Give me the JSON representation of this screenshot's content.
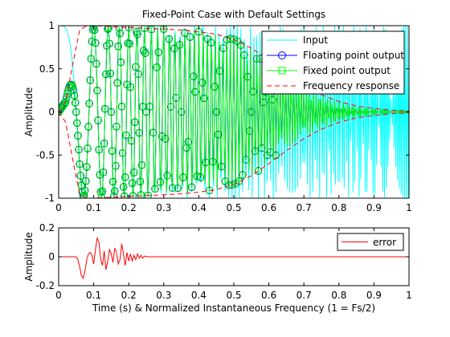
{
  "chart_data": [
    {
      "type": "line",
      "title": "Fixed-Point Case with Default Settings",
      "xlabel": "",
      "ylabel": "Amplitude",
      "xlim": [
        0,
        1
      ],
      "ylim": [
        -1,
        1
      ],
      "xticks": [
        0,
        0.1,
        0.2,
        0.3,
        0.4,
        0.5,
        0.6,
        0.7,
        0.8,
        0.9,
        1
      ],
      "xtick_labels": [
        "0",
        "0.1",
        "0.2",
        "0.3",
        "0.4",
        "0.5",
        "0.6",
        "0.7",
        "0.8",
        "0.9",
        "1"
      ],
      "yticks": [
        -1,
        -0.5,
        0,
        0.5,
        1
      ],
      "ytick_labels": [
        "-1",
        "-0.5",
        "0",
        "0.5",
        "1"
      ],
      "grid": false,
      "legend_position": "top-right",
      "series": [
        {
          "name": "Input",
          "color": "#00ffff",
          "marker": "none",
          "linestyle": "solid",
          "description": "unit-amplitude linear chirp sampled from 0 to 1"
        },
        {
          "name": "Floating point output",
          "color": "#0000ff",
          "marker": "circle",
          "linestyle": "solid"
        },
        {
          "name": "Fixed point output",
          "color": "#00ff00",
          "marker": "square",
          "linestyle": "solid"
        },
        {
          "name": "Frequency response",
          "color": "#ff0000",
          "marker": "none",
          "linestyle": "dashed"
        }
      ],
      "envelope_points": {
        "x": [
          0,
          0.02,
          0.04,
          0.06,
          0.08,
          0.1,
          0.15,
          0.2,
          0.25,
          0.3,
          0.35,
          0.4,
          0.45,
          0.5,
          0.55,
          0.6,
          0.65,
          0.7,
          0.75,
          0.8,
          0.85,
          0.9,
          0.95,
          1
        ],
        "y": [
          0,
          0.12,
          0.55,
          0.95,
          1.0,
          1.0,
          0.99,
          0.98,
          0.97,
          0.96,
          0.95,
          0.93,
          0.9,
          0.84,
          0.74,
          0.6,
          0.45,
          0.31,
          0.2,
          0.12,
          0.07,
          0.04,
          0.02,
          0.01
        ]
      }
    },
    {
      "type": "line",
      "title": "",
      "xlabel": "Time (s) & Normalized Instantaneous Frequency (1 = Fs/2)",
      "ylabel": "Amplitude",
      "xlim": [
        0,
        1
      ],
      "ylim": [
        -0.2,
        0.2
      ],
      "xticks": [
        0,
        0.1,
        0.2,
        0.3,
        0.4,
        0.5,
        0.6,
        0.7,
        0.8,
        0.9,
        1
      ],
      "xtick_labels": [
        "0",
        "0.1",
        "0.2",
        "0.3",
        "0.4",
        "0.5",
        "0.6",
        "0.7",
        "0.8",
        "0.9",
        "1"
      ],
      "yticks": [
        -0.2,
        0,
        0.2
      ],
      "ytick_labels": [
        "-0.2",
        "0",
        "0.2"
      ],
      "grid": false,
      "legend_position": "top-right",
      "series": [
        {
          "name": "error",
          "color": "#ff0000",
          "x": [
            0,
            0.05,
            0.055,
            0.06,
            0.065,
            0.07,
            0.075,
            0.08,
            0.085,
            0.09,
            0.095,
            0.1,
            0.105,
            0.11,
            0.115,
            0.12,
            0.125,
            0.13,
            0.135,
            0.14,
            0.145,
            0.15,
            0.155,
            0.16,
            0.165,
            0.17,
            0.175,
            0.18,
            0.185,
            0.19,
            0.195,
            0.2,
            0.205,
            0.21,
            0.215,
            0.22,
            0.225,
            0.23,
            0.235,
            0.24,
            0.245,
            0.25,
            0.26,
            1
          ],
          "y": [
            0,
            0,
            -0.02,
            -0.07,
            -0.13,
            -0.15,
            -0.1,
            -0.02,
            0.02,
            0.03,
            0.01,
            -0.05,
            0.05,
            0.13,
            0.1,
            -0.02,
            -0.06,
            0.04,
            -0.09,
            -0.03,
            0.05,
            0.02,
            -0.04,
            0.06,
            0.03,
            -0.05,
            -0.02,
            0.09,
            0.02,
            -0.06,
            0.03,
            -0.03,
            0.02,
            -0.03,
            0.01,
            -0.02,
            0.02,
            -0.01,
            0.01,
            -0.01,
            0.005,
            0,
            0,
            0
          ]
        }
      ]
    }
  ]
}
